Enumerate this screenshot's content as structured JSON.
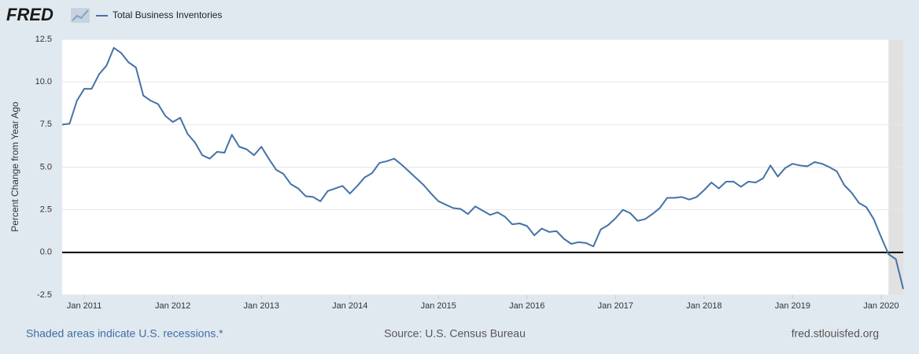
{
  "brand": "FRED",
  "chart_data": {
    "type": "line",
    "y_label": "Percent Change from Year Ago",
    "x": [
      "2010-10",
      "2010-11",
      "2010-12",
      "2011-01",
      "2011-02",
      "2011-03",
      "2011-04",
      "2011-05",
      "2011-06",
      "2011-07",
      "2011-08",
      "2011-09",
      "2011-10",
      "2011-11",
      "2011-12",
      "2012-01",
      "2012-02",
      "2012-03",
      "2012-04",
      "2012-05",
      "2012-06",
      "2012-07",
      "2012-08",
      "2012-09",
      "2012-10",
      "2012-11",
      "2012-12",
      "2013-01",
      "2013-02",
      "2013-03",
      "2013-04",
      "2013-05",
      "2013-06",
      "2013-07",
      "2013-08",
      "2013-09",
      "2013-10",
      "2013-11",
      "2013-12",
      "2014-01",
      "2014-02",
      "2014-03",
      "2014-04",
      "2014-05",
      "2014-06",
      "2014-07",
      "2014-08",
      "2014-09",
      "2014-10",
      "2014-11",
      "2014-12",
      "2015-01",
      "2015-02",
      "2015-03",
      "2015-04",
      "2015-05",
      "2015-06",
      "2015-07",
      "2015-08",
      "2015-09",
      "2015-10",
      "2015-11",
      "2015-12",
      "2016-01",
      "2016-02",
      "2016-03",
      "2016-04",
      "2016-05",
      "2016-06",
      "2016-07",
      "2016-08",
      "2016-09",
      "2016-10",
      "2016-11",
      "2016-12",
      "2017-01",
      "2017-02",
      "2017-03",
      "2017-04",
      "2017-05",
      "2017-06",
      "2017-07",
      "2017-08",
      "2017-09",
      "2017-10",
      "2017-11",
      "2017-12",
      "2018-01",
      "2018-02",
      "2018-03",
      "2018-04",
      "2018-05",
      "2018-06",
      "2018-07",
      "2018-08",
      "2018-09",
      "2018-10",
      "2018-11",
      "2018-12",
      "2019-01",
      "2019-02",
      "2019-03",
      "2019-04",
      "2019-05",
      "2019-06",
      "2019-07",
      "2019-08",
      "2019-09",
      "2019-10",
      "2019-11",
      "2019-12",
      "2020-01",
      "2020-02",
      "2020-03",
      "2020-04"
    ],
    "series": [
      {
        "name": "Total Business Inventories",
        "color": "#4572a7",
        "values": [
          7.5,
          7.55,
          8.9,
          9.6,
          9.6,
          10.45,
          10.95,
          12.0,
          11.7,
          11.15,
          10.85,
          9.2,
          8.9,
          8.7,
          8.0,
          7.65,
          7.9,
          6.95,
          6.45,
          5.7,
          5.5,
          5.9,
          5.85,
          6.9,
          6.2,
          6.05,
          5.7,
          6.2,
          5.5,
          4.85,
          4.6,
          4.0,
          3.75,
          3.3,
          3.25,
          3.0,
          3.6,
          3.75,
          3.9,
          3.45,
          3.9,
          4.4,
          4.65,
          5.25,
          5.35,
          5.5,
          5.15,
          4.75,
          4.35,
          3.95,
          3.45,
          3.0,
          2.8,
          2.6,
          2.55,
          2.25,
          2.7,
          2.45,
          2.2,
          2.35,
          2.1,
          1.65,
          1.7,
          1.55,
          1.0,
          1.4,
          1.2,
          1.25,
          0.8,
          0.5,
          0.6,
          0.55,
          0.35,
          1.35,
          1.6,
          2.0,
          2.5,
          2.3,
          1.85,
          1.95,
          2.25,
          2.6,
          3.2,
          3.2,
          3.25,
          3.1,
          3.25,
          3.65,
          4.1,
          3.75,
          4.15,
          4.15,
          3.85,
          4.15,
          4.1,
          4.35,
          5.1,
          4.45,
          4.95,
          5.2,
          5.1,
          5.05,
          5.3,
          5.2,
          5.0,
          4.75,
          3.95,
          3.5,
          2.9,
          2.65,
          1.95,
          0.9,
          -0.1,
          -0.4,
          -2.15
        ]
      }
    ],
    "xlim": [
      "2010-10",
      "2020-04"
    ],
    "xticks": [
      {
        "value": "2011-01",
        "label": "Jan 2011"
      },
      {
        "value": "2012-01",
        "label": "Jan 2012"
      },
      {
        "value": "2013-01",
        "label": "Jan 2013"
      },
      {
        "value": "2014-01",
        "label": "Jan 2014"
      },
      {
        "value": "2015-01",
        "label": "Jan 2015"
      },
      {
        "value": "2016-01",
        "label": "Jan 2016"
      },
      {
        "value": "2017-01",
        "label": "Jan 2017"
      },
      {
        "value": "2018-01",
        "label": "Jan 2018"
      },
      {
        "value": "2019-01",
        "label": "Jan 2019"
      },
      {
        "value": "2020-01",
        "label": "Jan 2020"
      }
    ],
    "ylim": [
      -2.5,
      12.5
    ],
    "yticks": [
      -2.5,
      {
        "value": 0,
        "label": "0.0"
      },
      2.5,
      {
        "value": 5,
        "label": "5.0"
      },
      7.5,
      {
        "value": 10,
        "label": "10.0"
      },
      12.5
    ],
    "grid": true,
    "zero_line": true,
    "recessions": [
      [
        "2020-02",
        "2020-04"
      ]
    ],
    "recession_color": "#e1e1e1"
  },
  "footer": {
    "note": "Shaded areas indicate U.S. recessions.*",
    "source": "Source: U.S. Census Bureau",
    "site": "fred.stlouisfed.org"
  }
}
